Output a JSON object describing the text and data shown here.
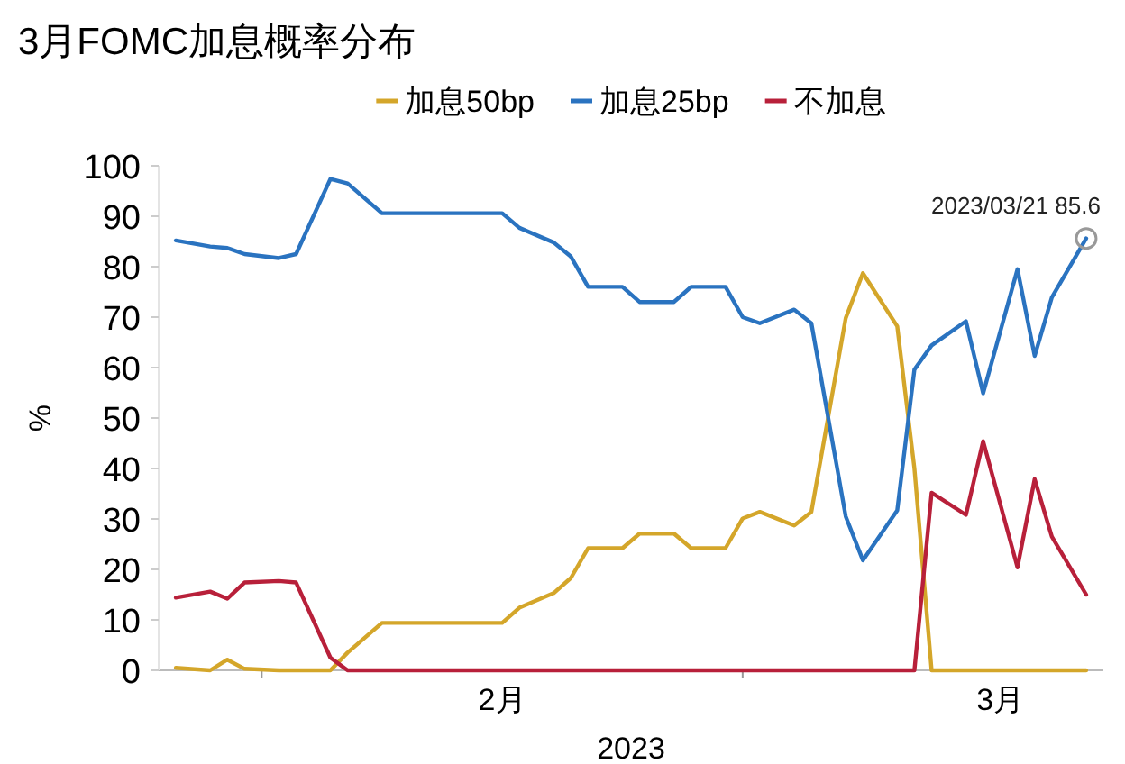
{
  "chart_data": {
    "type": "line",
    "title": "3月FOMC加息概率分布",
    "xlabel": "2023",
    "ylabel": "%",
    "legend": "top",
    "x": [
      "2023-01-27",
      "2023-01-29",
      "2023-01-30",
      "2023-01-31",
      "2023-02-02",
      "2023-02-03",
      "2023-02-05",
      "2023-02-06",
      "2023-02-08",
      "2023-02-09",
      "2023-02-10",
      "2023-02-12",
      "2023-02-13",
      "2023-02-15",
      "2023-02-16",
      "2023-02-18",
      "2023-02-19",
      "2023-02-20",
      "2023-02-22",
      "2023-02-23",
      "2023-02-25",
      "2023-02-26",
      "2023-02-28",
      "2023-03-01",
      "2023-03-02",
      "2023-03-04",
      "2023-03-05",
      "2023-03-07",
      "2023-03-08",
      "2023-03-10",
      "2023-03-11",
      "2023-03-12",
      "2023-03-14",
      "2023-03-15",
      "2023-03-17",
      "2023-03-18",
      "2023-03-19",
      "2023-03-21"
    ],
    "series": [
      {
        "name": "加息50bp",
        "color": "#d4a62a",
        "values": [
          0.5,
          0,
          2.1,
          0.3,
          0,
          0,
          0,
          3.5,
          9.4,
          9.4,
          9.4,
          9.4,
          9.4,
          9.4,
          12.4,
          15.3,
          18.3,
          24.2,
          24.2,
          27.1,
          27.1,
          24.2,
          24.2,
          30.1,
          31.4,
          28.7,
          31.4,
          69.8,
          78.7,
          68.2,
          40,
          0,
          0,
          0,
          0,
          0,
          0,
          0
        ]
      },
      {
        "name": "加息25bp",
        "color": "#2a73c0",
        "values": [
          85.2,
          84,
          83.7,
          82.5,
          81.7,
          82.5,
          97.4,
          96.5,
          90.6,
          90.6,
          90.6,
          90.6,
          90.6,
          90.6,
          87.7,
          84.8,
          82,
          76,
          76,
          73,
          73,
          76,
          76,
          70,
          68.8,
          71.5,
          68.8,
          30.5,
          21.8,
          31.7,
          59.6,
          64.4,
          69.2,
          54.9,
          79.5,
          62.3,
          73.9,
          85.6
        ]
      },
      {
        "name": "不加息",
        "color": "#b8203a",
        "values": [
          14.4,
          15.6,
          14.2,
          17.4,
          17.7,
          17.4,
          2.5,
          0,
          0,
          0,
          0,
          0,
          0,
          0,
          0,
          0,
          0,
          0,
          0,
          0,
          0,
          0,
          0,
          0,
          0,
          0,
          0,
          0,
          0,
          0,
          0,
          35.2,
          30.8,
          45.4,
          20.4,
          37.9,
          26.5,
          15
        ]
      }
    ],
    "xlim": [
      "2023-01-26",
      "2023-03-22"
    ],
    "xticks": [
      {
        "value": "2023-02-01",
        "label": null
      },
      {
        "value": "2023-02-15",
        "label": "2月"
      },
      {
        "value": "2023-03-01",
        "label": null
      },
      {
        "value": "2023-03-16",
        "label": "3月"
      }
    ],
    "ylim": [
      0,
      100
    ],
    "yticks": [
      0,
      10,
      20,
      30,
      40,
      50,
      60,
      70,
      80,
      90,
      100
    ],
    "annotations": [
      {
        "text": "2023/03/21  85.6",
        "x": "2023-03-21",
        "y": 85.6
      }
    ]
  }
}
